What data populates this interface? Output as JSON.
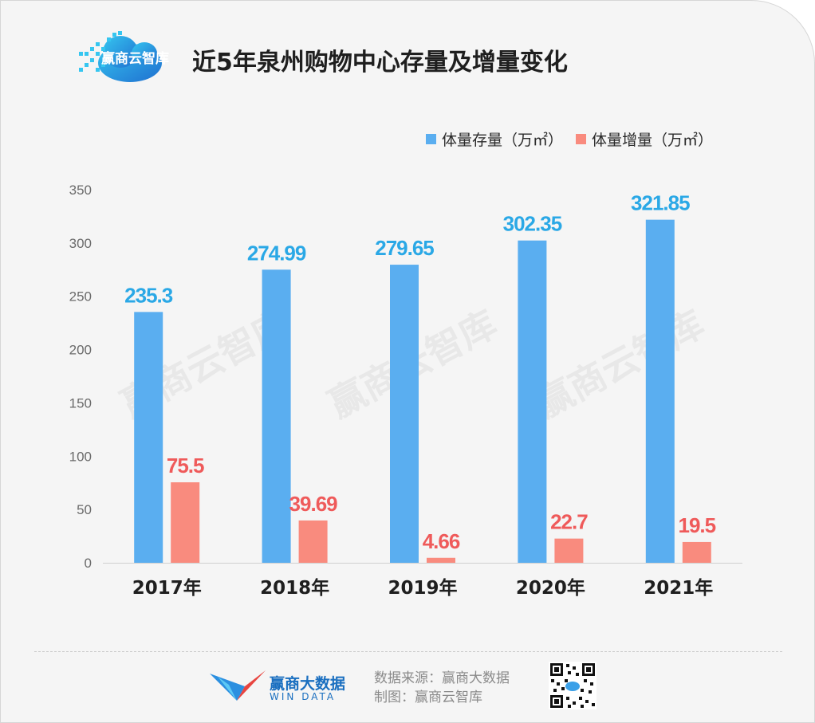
{
  "header": {
    "logo_text": "赢商云智库",
    "title": "近5年泉州购物中心存量及增量变化"
  },
  "watermark_text": "赢商云智库",
  "footer": {
    "brand_name": "赢商大数据",
    "brand_sub": "WIN DATA",
    "source_line": "数据来源：赢商大数据",
    "made_by_line": "制图：赢商云智库"
  },
  "colors": {
    "stock": "#5aaef0",
    "increment": "#f98b7e",
    "stock_label": "#2aa8e6",
    "increment_label": "#ef5a5a"
  },
  "chart_data": {
    "type": "bar",
    "title": "近5年泉州购物中心存量及增量变化",
    "categories": [
      "2017年",
      "2018年",
      "2019年",
      "2020年",
      "2021年"
    ],
    "series": [
      {
        "name": "体量存量（万㎡）",
        "values": [
          235.3,
          274.99,
          279.65,
          302.35,
          321.85
        ],
        "labels": [
          "235.3",
          "274.99",
          "279.65",
          "302.35",
          "321.85"
        ]
      },
      {
        "name": "体量增量（万㎡）",
        "values": [
          75.5,
          39.69,
          4.66,
          22.7,
          19.5
        ],
        "labels": [
          "75.5",
          "39.69",
          "4.66",
          "22.7",
          "19.5"
        ]
      }
    ],
    "yticks": [
      "0",
      "50",
      "100",
      "150",
      "200",
      "250",
      "300",
      "350"
    ],
    "ylim": [
      0,
      350
    ],
    "grid": false,
    "legend_position": "top-right",
    "xlabel": "",
    "ylabel": ""
  }
}
